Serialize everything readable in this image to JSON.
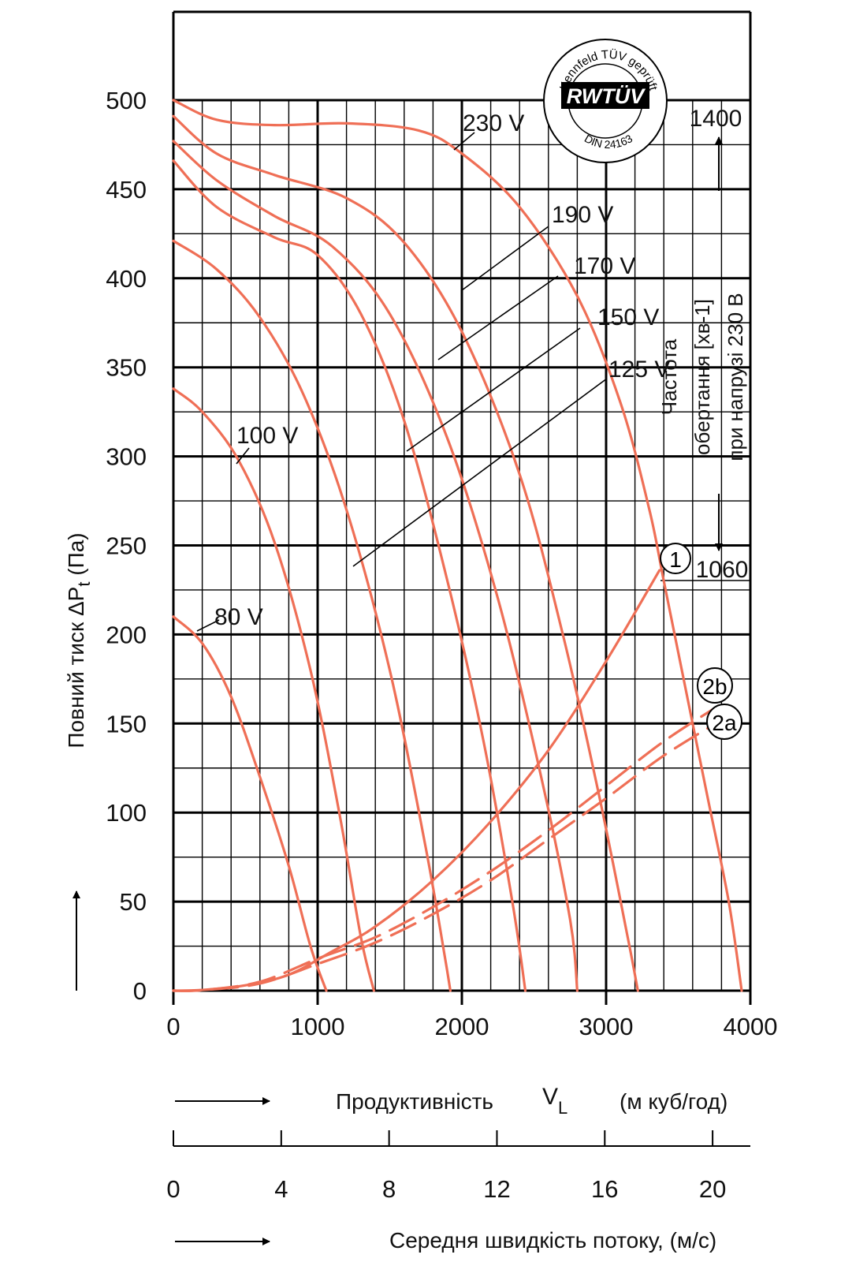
{
  "chart_data": {
    "type": "line",
    "ylabel_main": "Повний тиск ΔP",
    "ylabel_sub": "t",
    "ylabel_unit": " (Па)",
    "xlabel_main": "Продуктивність",
    "xlabel_symbol": "V",
    "xlabel_symbol_sub": "L",
    "xlabel_unit": "(м куб/год)",
    "x2label": "Середня швидкість потоку, (м/с)",
    "xlim": [
      0,
      4000
    ],
    "ylim": [
      0,
      500
    ],
    "x_ticks": [
      "0",
      "1000",
      "2000",
      "3000",
      "4000"
    ],
    "y_ticks": [
      "0",
      "50",
      "100",
      "150",
      "200",
      "250",
      "300",
      "350",
      "400",
      "450",
      "500"
    ],
    "x2_ticks": [
      "0",
      "4",
      "8",
      "12",
      "16",
      "20"
    ],
    "x2_tick_values": [
      0,
      4,
      8,
      12,
      16,
      20
    ],
    "x2_per_x": 0.00535,
    "grid": true,
    "series": [
      {
        "name": "230V",
        "x": [
          0,
          300,
          700,
          1200,
          1700,
          2000,
          2400,
          2800,
          3100,
          3300,
          3400,
          3550,
          3700,
          3850,
          3940
        ],
        "y": [
          500,
          489,
          486,
          487,
          483,
          470,
          440,
          390,
          330,
          270,
          230,
          170,
          110,
          50,
          0
        ]
      },
      {
        "name": "190V",
        "x": [
          0,
          300,
          700,
          1200,
          1600,
          2000,
          2400,
          2700,
          2950,
          3150,
          3220
        ],
        "y": [
          491,
          470,
          458,
          445,
          420,
          370,
          290,
          200,
          110,
          30,
          0
        ]
      },
      {
        "name": "170V",
        "x": [
          0,
          300,
          700,
          1100,
          1500,
          1900,
          2250,
          2550,
          2750,
          2800
        ],
        "y": [
          477,
          455,
          435,
          418,
          380,
          310,
          220,
          120,
          40,
          0
        ]
      },
      {
        "name": "150V",
        "x": [
          0,
          300,
          700,
          1000,
          1300,
          1600,
          1900,
          2150,
          2350,
          2440
        ],
        "y": [
          466,
          440,
          423,
          413,
          380,
          320,
          230,
          140,
          50,
          0
        ]
      },
      {
        "name": "125V",
        "x": [
          0,
          300,
          600,
          900,
          1200,
          1500,
          1750,
          1880,
          1920
        ],
        "y": [
          421,
          405,
          378,
          335,
          270,
          180,
          80,
          20,
          0
        ]
      },
      {
        "name": "100V",
        "x": [
          0,
          200,
          450,
          700,
          950,
          1150,
          1300,
          1390
        ],
        "y": [
          338,
          325,
          298,
          252,
          180,
          100,
          30,
          0
        ]
      },
      {
        "name": "80V",
        "x": [
          0,
          200,
          400,
          600,
          800,
          950,
          1060
        ],
        "y": [
          210,
          195,
          165,
          120,
          70,
          25,
          0
        ]
      }
    ],
    "system_curves": [
      {
        "name": "1",
        "x": [
          0,
          200,
          500,
          800,
          1100,
          1400,
          1800,
          2200,
          2600,
          3000,
          3370
        ],
        "y": [
          0,
          0.4,
          3,
          9,
          22,
          36,
          62,
          95,
          135,
          185,
          236
        ]
      },
      {
        "name": "2b",
        "x": [
          0,
          200,
          600,
          1000,
          1400,
          1800,
          2200,
          2600,
          3000,
          3400,
          3780
        ],
        "y": [
          0,
          0.3,
          5,
          18,
          30,
          47,
          67,
          90,
          115,
          140,
          160
        ]
      },
      {
        "name": "2a",
        "x": [
          0,
          200,
          600,
          1000,
          1400,
          1800,
          2200,
          2600,
          3000,
          3400,
          3800
        ],
        "y": [
          0,
          0.3,
          4,
          15,
          27,
          43,
          62,
          85,
          108,
          132,
          152
        ]
      }
    ],
    "annotations": {
      "speed_top": "1400",
      "speed_bottom": "1060",
      "speed_label": [
        "Частота",
        "обертання [хв-1]",
        "при напрузі 230 В"
      ],
      "curve_markers": [
        "1",
        "2b",
        "2a"
      ]
    },
    "voltage_labels": [
      "230 V",
      "190 V",
      "170 V",
      "150 V",
      "125 V",
      "100 V",
      "80 V"
    ]
  },
  "badge": {
    "ring_text": "Kennfeld TÜV geprüft",
    "logo": "RWTÜV",
    "standard": "DIN 24163"
  },
  "colors": {
    "curve": "#ef6f56",
    "grid": "#000000",
    "background": "#ffffff"
  },
  "icons": [
    "arrow-up-icon",
    "arrow-down-icon",
    "arrow-right-icon"
  ]
}
